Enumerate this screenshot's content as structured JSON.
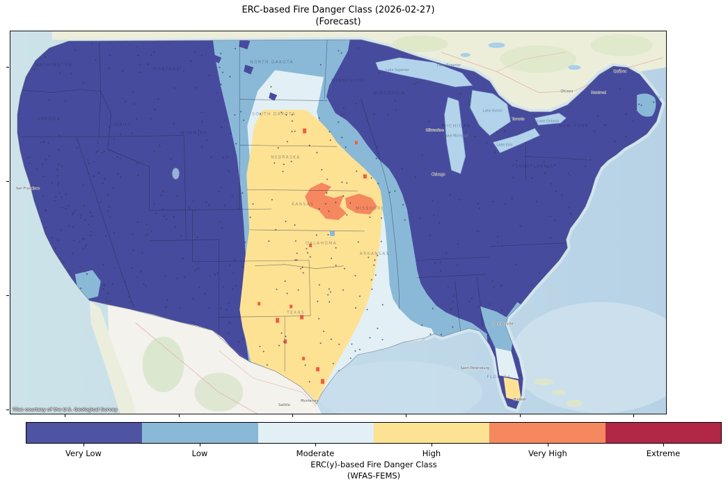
{
  "title": {
    "line1": "ERC-based Fire Danger Class (2026-02-27)",
    "line2": "(Forecast)"
  },
  "map": {
    "attribution": "Tiles courtesy of the U.S. Geological Survey",
    "ocean_color": "#c2dcea",
    "neighbor_land_color": "#edeeda",
    "state_labels": [
      "WASHINGTON",
      "MONTANA",
      "OREGON",
      "IDAHO",
      "WYOMING",
      "NORTH DAKOTA",
      "SOUTH DAKOTA",
      "NEBRASKA",
      "MINNESOTA",
      "WISCONSIN",
      "KANSAS",
      "OKLAHOMA",
      "MISSOURI",
      "TEXAS",
      "ARKANSAS",
      "MICHIGAN",
      "NEW YORK",
      "PENNSYLVANIA",
      "FLORIDA"
    ],
    "city_labels": [
      "San Francisco",
      "Chicago",
      "Milwaukee",
      "Jacksonville",
      "Saint Petersburg",
      "Hialeah",
      "Monterrey",
      "Saltillo",
      "Ottawa",
      "Montreal",
      "Québec",
      "Toronto"
    ],
    "water_labels": [
      "Lake Superior",
      "Lake Superior",
      "Lake Michigan",
      "Lake Huron",
      "Lake Erie",
      "Lake Ontario"
    ]
  },
  "colorbar": {
    "classes": [
      {
        "label": "Very Low",
        "color": "#4e54a1"
      },
      {
        "label": "Low",
        "color": "#8ab9d8"
      },
      {
        "label": "Moderate",
        "color": "#e2f0f5"
      },
      {
        "label": "High",
        "color": "#fde294"
      },
      {
        "label": "Very High",
        "color": "#f6885f"
      },
      {
        "label": "Extreme",
        "color": "#b22746"
      }
    ],
    "xlabel_line1": "ERC(y)-based Fire Danger Class",
    "xlabel_line2": "(WFAS-FEMS)"
  }
}
